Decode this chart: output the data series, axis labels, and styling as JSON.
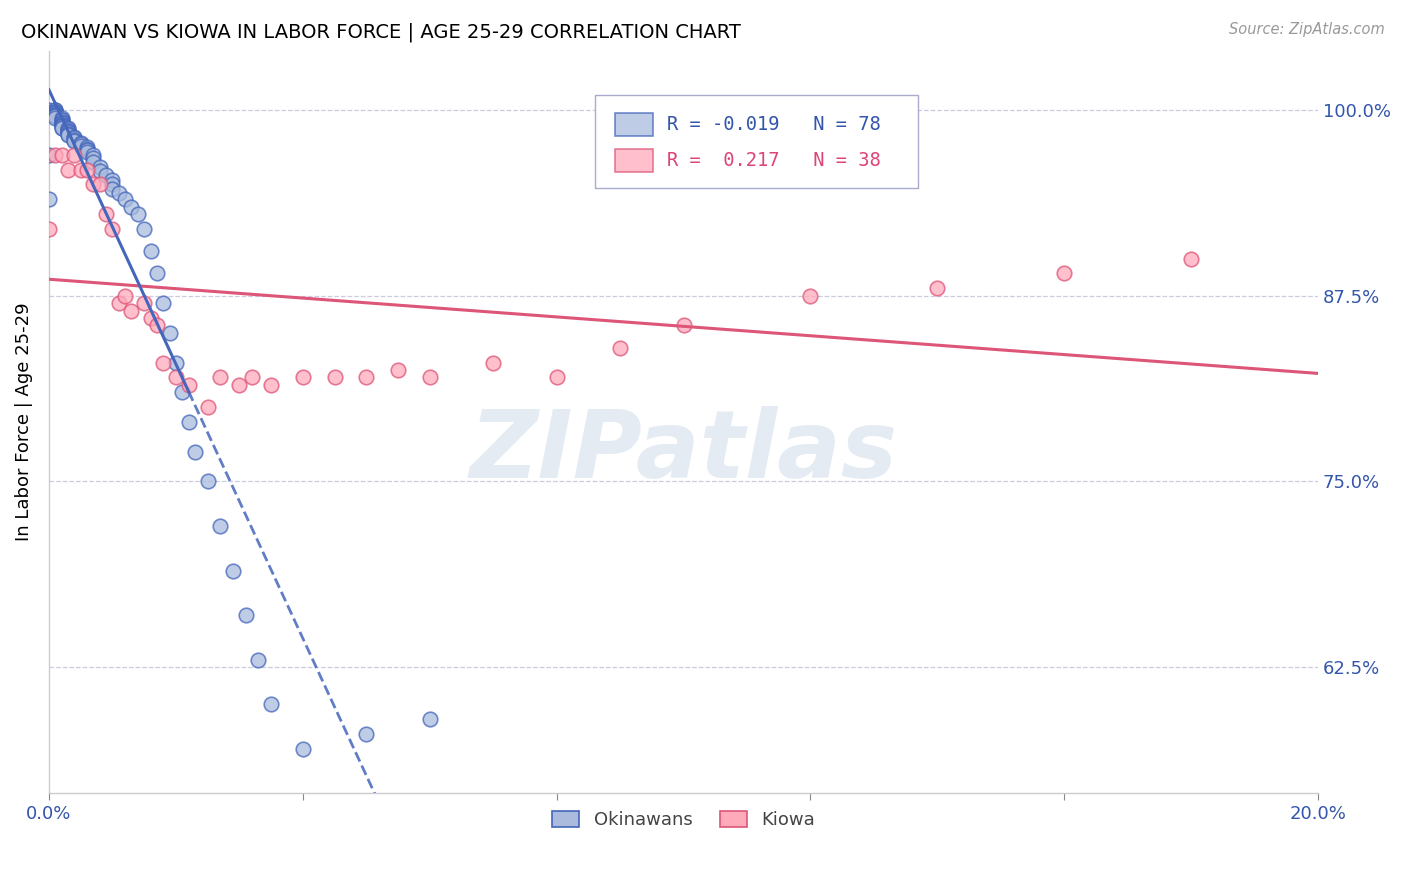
{
  "title": "OKINAWAN VS KIOWA IN LABOR FORCE | AGE 25-29 CORRELATION CHART",
  "source": "Source: ZipAtlas.com",
  "ylabel": "In Labor Force | Age 25-29",
  "ytick_labels": [
    "100.0%",
    "87.5%",
    "75.0%",
    "62.5%"
  ],
  "ytick_values": [
    1.0,
    0.875,
    0.75,
    0.625
  ],
  "xlim": [
    0.0,
    0.2
  ],
  "ylim": [
    0.54,
    1.04
  ],
  "legend_r_blue": "-0.019",
  "legend_n_blue": "78",
  "legend_r_pink": "0.217",
  "legend_n_pink": "38",
  "blue_fill": "#aabbdd",
  "blue_edge": "#4466bb",
  "pink_fill": "#ffaabb",
  "pink_edge": "#dd5577",
  "blue_line": "#4466bb",
  "pink_line": "#dd5577",
  "watermark_color": "#d0dce8",
  "okinawan_x": [
    0.0,
    0.0,
    0.0,
    0.001,
    0.001,
    0.001,
    0.001,
    0.001,
    0.001,
    0.001,
    0.001,
    0.001,
    0.001,
    0.001,
    0.001,
    0.001,
    0.002,
    0.002,
    0.002,
    0.002,
    0.002,
    0.002,
    0.002,
    0.002,
    0.002,
    0.002,
    0.002,
    0.002,
    0.003,
    0.003,
    0.003,
    0.003,
    0.003,
    0.003,
    0.003,
    0.003,
    0.004,
    0.004,
    0.004,
    0.004,
    0.005,
    0.005,
    0.005,
    0.006,
    0.006,
    0.006,
    0.006,
    0.007,
    0.007,
    0.007,
    0.008,
    0.008,
    0.009,
    0.01,
    0.01,
    0.01,
    0.011,
    0.012,
    0.013,
    0.014,
    0.015,
    0.016,
    0.017,
    0.018,
    0.019,
    0.02,
    0.021,
    0.022,
    0.023,
    0.025,
    0.027,
    0.029,
    0.031,
    0.033,
    0.035,
    0.04,
    0.05,
    0.06
  ],
  "okinawan_y": [
    1.0,
    0.94,
    0.97,
    1.0,
    1.0,
    1.0,
    0.999,
    0.999,
    0.998,
    0.998,
    0.997,
    0.997,
    0.997,
    0.996,
    0.996,
    0.995,
    0.995,
    0.993,
    0.993,
    0.992,
    0.991,
    0.991,
    0.99,
    0.99,
    0.989,
    0.989,
    0.988,
    0.988,
    0.988,
    0.987,
    0.986,
    0.986,
    0.985,
    0.984,
    0.984,
    0.983,
    0.982,
    0.981,
    0.98,
    0.979,
    0.978,
    0.977,
    0.976,
    0.975,
    0.974,
    0.973,
    0.972,
    0.97,
    0.968,
    0.965,
    0.962,
    0.959,
    0.956,
    0.953,
    0.95,
    0.947,
    0.944,
    0.94,
    0.935,
    0.93,
    0.92,
    0.905,
    0.89,
    0.87,
    0.85,
    0.83,
    0.81,
    0.79,
    0.77,
    0.75,
    0.72,
    0.69,
    0.66,
    0.63,
    0.6,
    0.57,
    0.58,
    0.59
  ],
  "kiowa_x": [
    0.0,
    0.001,
    0.002,
    0.003,
    0.004,
    0.005,
    0.006,
    0.007,
    0.008,
    0.009,
    0.01,
    0.011,
    0.012,
    0.013,
    0.015,
    0.016,
    0.017,
    0.018,
    0.02,
    0.022,
    0.025,
    0.027,
    0.03,
    0.032,
    0.035,
    0.04,
    0.045,
    0.05,
    0.055,
    0.06,
    0.07,
    0.08,
    0.09,
    0.1,
    0.12,
    0.14,
    0.16,
    0.18
  ],
  "kiowa_y": [
    0.92,
    0.97,
    0.97,
    0.96,
    0.97,
    0.96,
    0.96,
    0.95,
    0.95,
    0.93,
    0.92,
    0.87,
    0.875,
    0.865,
    0.87,
    0.86,
    0.855,
    0.83,
    0.82,
    0.815,
    0.8,
    0.82,
    0.815,
    0.82,
    0.815,
    0.82,
    0.82,
    0.82,
    0.825,
    0.82,
    0.83,
    0.82,
    0.84,
    0.855,
    0.875,
    0.88,
    0.89,
    0.9
  ]
}
